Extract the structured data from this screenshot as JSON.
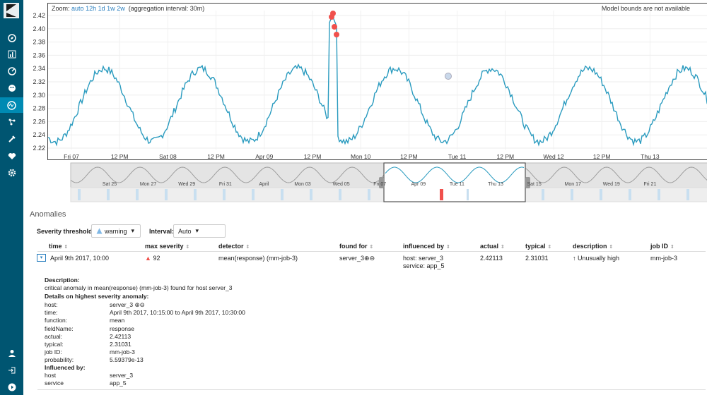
{
  "nav": {
    "top": [
      "discover-icon",
      "visualize-icon",
      "dashboard-icon",
      "timelion-icon",
      "ml-icon",
      "graph-icon",
      "devtools-icon",
      "monitoring-icon",
      "management-icon"
    ],
    "bottom": [
      "user-icon",
      "logout-icon",
      "collapse-icon"
    ]
  },
  "chart": {
    "zoom_label": "Zoom:",
    "zoom_options": [
      "auto",
      "12h",
      "1d",
      "1w",
      "2w"
    ],
    "aggregation": "(aggregation interval: 30m)",
    "bounds_note": "Model bounds are not available",
    "y_ticks": [
      "2.42",
      "2.40",
      "2.38",
      "2.36",
      "2.34",
      "2.32",
      "2.30",
      "2.28",
      "2.26",
      "2.24",
      "2.22"
    ],
    "x_ticks": [
      "Fri 07",
      "12 PM",
      "Sat 08",
      "12 PM",
      "Apr 09",
      "12 PM",
      "Mon 10",
      "12 PM",
      "Tue 11",
      "12 PM",
      "Wed 12",
      "12 PM",
      "Thu 13"
    ],
    "line_color": "#2a9bbf",
    "anomaly_color": "#f0504c"
  },
  "context": {
    "labels": [
      "Sat 25",
      "Mon 27",
      "Wed 29",
      "Fri 31",
      "April",
      "Mon 03",
      "Wed 05",
      "Fri 07",
      "Apr 09",
      "Tue 11",
      "Thu 13",
      "Sat 15",
      "Mon 17",
      "Wed 19",
      "Fri 21"
    ]
  },
  "anomalies": {
    "title": "Anomalies",
    "severity_label": "Severity threshold:",
    "severity_value": "warning",
    "interval_label": "Interval:",
    "interval_value": "Auto",
    "columns": [
      "time",
      "max severity",
      "detector",
      "found for",
      "influenced by",
      "actual",
      "typical",
      "description",
      "job ID"
    ],
    "row": {
      "time": "April 9th 2017, 10:00",
      "severity": "92",
      "detector": "mean(response) (mm-job-3)",
      "found_for": "server_3",
      "influenced_host": "host: server_3",
      "influenced_service": "service: app_5",
      "actual": "2.42113",
      "typical": "2.31031",
      "description": "Unusually high",
      "job_id": "mm-job-3"
    },
    "details": {
      "description_label": "Description:",
      "description_text": "critical anomaly in mean(response) (mm-job-3) found for host server_3",
      "highest_label": "Details on highest severity anomaly:",
      "fields": [
        {
          "k": "host:",
          "v": "server_3"
        },
        {
          "k": "time:",
          "v": "April 9th 2017, 10:15:00 to April 9th 2017, 10:30:00"
        },
        {
          "k": "function:",
          "v": "mean"
        },
        {
          "k": "fieldName:",
          "v": "response"
        },
        {
          "k": "actual:",
          "v": "2.42113"
        },
        {
          "k": "typical:",
          "v": "2.31031"
        },
        {
          "k": "job ID:",
          "v": "mm-job-3"
        },
        {
          "k": "probability:",
          "v": "5.59379e-13"
        }
      ],
      "influenced_label": "Influenced by:",
      "influencers": [
        {
          "k": "host",
          "v": "server_3"
        },
        {
          "k": "service",
          "v": "app_5"
        }
      ]
    }
  }
}
